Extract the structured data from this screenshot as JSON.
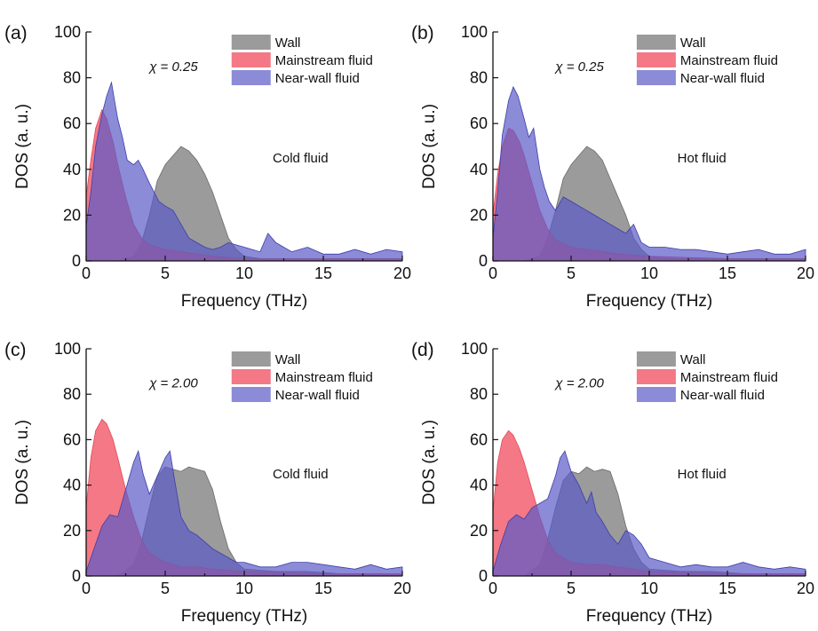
{
  "figure": {
    "colors": {
      "wall": "#7f7f7f",
      "mainstream": "#f25a6a",
      "near_wall": "#5a5ac8",
      "wall_edge": "#6a6a6a",
      "mainstream_edge": "#e04a5a",
      "near_wall_edge": "#3e3ea8"
    },
    "opacity": {
      "wall": 0.78,
      "mainstream": 0.82,
      "near_wall": 0.7
    }
  },
  "chart_data": [
    {
      "type": "area",
      "panel_label": "(a)",
      "xlabel": "Frequency (THz)",
      "ylabel": "DOS (a. u.)",
      "xlim": [
        0,
        20
      ],
      "ylim": [
        0,
        100
      ],
      "xticks": [
        0,
        5,
        10,
        15,
        20
      ],
      "yticks": [
        0,
        20,
        40,
        60,
        80,
        100
      ],
      "chi_label": "χ = 0.25",
      "annotation": "Cold fluid",
      "legend": [
        "Wall",
        "Mainstream fluid",
        "Near-wall fluid"
      ],
      "legend_position": "top-right",
      "series": [
        {
          "name": "Wall",
          "color_key": "wall",
          "x": [
            0,
            2,
            3,
            3.5,
            4,
            4.5,
            5,
            5.5,
            6,
            6.5,
            7,
            7.5,
            8,
            8.5,
            9,
            9.5,
            10,
            11,
            12,
            14,
            16,
            18,
            20
          ],
          "y": [
            0,
            0,
            2,
            8,
            20,
            35,
            42,
            46,
            50,
            48,
            44,
            38,
            30,
            20,
            10,
            5,
            2,
            1,
            1,
            1,
            1,
            1,
            1
          ]
        },
        {
          "name": "Mainstream fluid",
          "color_key": "mainstream",
          "x": [
            0,
            0.3,
            0.6,
            1,
            1.3,
            1.7,
            2,
            2.5,
            3,
            3.5,
            4,
            5,
            6,
            7,
            8,
            10,
            15,
            20
          ],
          "y": [
            28,
            44,
            58,
            66,
            62,
            52,
            42,
            28,
            16,
            10,
            7,
            5,
            4,
            3,
            2,
            1,
            1,
            1
          ]
        },
        {
          "name": "Near-wall fluid",
          "color_key": "near_wall",
          "x": [
            0,
            0.3,
            0.6,
            1,
            1.3,
            1.6,
            1.8,
            2,
            2.3,
            2.6,
            3,
            3.3,
            3.6,
            4,
            4.3,
            4.6,
            5,
            5.5,
            6,
            6.5,
            7,
            7.5,
            8,
            8.5,
            9,
            10,
            11,
            11.5,
            12,
            13,
            14,
            15,
            16,
            17,
            18,
            19,
            20
          ],
          "y": [
            15,
            30,
            50,
            64,
            72,
            78,
            70,
            62,
            54,
            44,
            42,
            44,
            40,
            34,
            30,
            26,
            24,
            22,
            16,
            10,
            8,
            6,
            5,
            6,
            8,
            6,
            4,
            12,
            8,
            4,
            6,
            3,
            3,
            5,
            3,
            5,
            4
          ]
        }
      ]
    },
    {
      "type": "area",
      "panel_label": "(b)",
      "xlabel": "Frequency (THz)",
      "ylabel": "DOS (a. u.)",
      "xlim": [
        0,
        20
      ],
      "ylim": [
        0,
        100
      ],
      "xticks": [
        0,
        5,
        10,
        15,
        20
      ],
      "yticks": [
        0,
        20,
        40,
        60,
        80,
        100
      ],
      "chi_label": "χ = 0.25",
      "annotation": "Hot fluid",
      "legend": [
        "Wall",
        "Mainstream fluid",
        "Near-wall fluid"
      ],
      "legend_position": "top-right",
      "series": [
        {
          "name": "Wall",
          "color_key": "wall",
          "x": [
            0,
            2,
            3,
            3.5,
            4,
            4.5,
            5,
            5.5,
            6,
            6.5,
            7,
            7.5,
            8,
            8.5,
            9,
            9.5,
            10,
            11,
            12,
            14,
            16,
            18,
            20
          ],
          "y": [
            0,
            0,
            2,
            10,
            22,
            36,
            42,
            46,
            50,
            48,
            44,
            36,
            28,
            20,
            10,
            5,
            2,
            1,
            1,
            1,
            1,
            1,
            1
          ]
        },
        {
          "name": "Mainstream fluid",
          "color_key": "mainstream",
          "x": [
            0,
            0.3,
            0.6,
            1,
            1.3,
            1.7,
            2,
            2.5,
            3,
            3.5,
            4,
            5,
            6,
            7,
            8,
            10,
            15,
            20
          ],
          "y": [
            20,
            38,
            50,
            58,
            57,
            52,
            46,
            34,
            22,
            14,
            9,
            6,
            5,
            4,
            3,
            2,
            1,
            1
          ]
        },
        {
          "name": "Near-wall fluid",
          "color_key": "near_wall",
          "x": [
            0,
            0.3,
            0.6,
            1,
            1.3,
            1.6,
            2,
            2.3,
            2.6,
            3,
            3.3,
            3.6,
            4,
            4.5,
            5,
            5.5,
            6,
            6.5,
            7,
            7.5,
            8,
            8.5,
            9,
            9.5,
            10,
            11,
            12,
            13,
            14,
            15,
            16,
            17,
            18,
            19,
            20
          ],
          "y": [
            10,
            30,
            55,
            70,
            76,
            72,
            62,
            54,
            58,
            40,
            32,
            26,
            22,
            28,
            26,
            24,
            22,
            20,
            18,
            16,
            14,
            12,
            16,
            8,
            6,
            6,
            5,
            5,
            4,
            3,
            4,
            5,
            3,
            3,
            5
          ]
        }
      ]
    },
    {
      "type": "area",
      "panel_label": "(c)",
      "xlabel": "Frequency (THz)",
      "ylabel": "DOS (a. u.)",
      "xlim": [
        0,
        20
      ],
      "ylim": [
        0,
        100
      ],
      "xticks": [
        0,
        5,
        10,
        15,
        20
      ],
      "yticks": [
        0,
        20,
        40,
        60,
        80,
        100
      ],
      "chi_label": "χ = 2.00",
      "annotation": "Cold fluid",
      "legend": [
        "Wall",
        "Mainstream fluid",
        "Near-wall fluid"
      ],
      "legend_position": "top-right",
      "series": [
        {
          "name": "Wall",
          "color_key": "wall",
          "x": [
            0,
            2,
            3,
            3.5,
            4,
            4.5,
            5,
            5.5,
            6,
            6.5,
            7,
            7.5,
            8,
            8.5,
            9,
            9.5,
            10,
            12,
            14,
            16,
            18,
            20
          ],
          "y": [
            0,
            0,
            5,
            15,
            30,
            44,
            48,
            47,
            46,
            48,
            47,
            46,
            38,
            24,
            12,
            6,
            3,
            2,
            2,
            1,
            1,
            1
          ]
        },
        {
          "name": "Mainstream fluid",
          "color_key": "mainstream",
          "x": [
            0,
            0.3,
            0.6,
            1,
            1.3,
            1.7,
            2,
            2.5,
            3,
            3.5,
            4,
            5,
            6,
            7,
            8,
            10,
            15,
            20
          ],
          "y": [
            30,
            52,
            64,
            69,
            67,
            60,
            52,
            38,
            26,
            16,
            10,
            6,
            4,
            4,
            3,
            2,
            1,
            1
          ]
        },
        {
          "name": "Near-wall fluid",
          "color_key": "near_wall",
          "x": [
            0,
            0.5,
            1,
            1.5,
            2,
            2.5,
            3,
            3.3,
            3.6,
            4,
            4.5,
            5,
            5.3,
            5.6,
            6,
            6.5,
            7,
            7.5,
            8,
            8.5,
            9,
            9.5,
            10,
            11,
            12,
            13,
            14,
            15,
            16,
            17,
            18,
            19,
            20
          ],
          "y": [
            2,
            12,
            22,
            27,
            26,
            38,
            50,
            55,
            45,
            36,
            44,
            52,
            55,
            42,
            26,
            20,
            18,
            15,
            12,
            10,
            8,
            6,
            6,
            4,
            4,
            6,
            6,
            5,
            4,
            3,
            5,
            3,
            4
          ]
        }
      ]
    },
    {
      "type": "area",
      "panel_label": "(d)",
      "xlabel": "Frequency (THz)",
      "ylabel": "DOS (a. u.)",
      "xlim": [
        0,
        20
      ],
      "ylim": [
        0,
        100
      ],
      "xticks": [
        0,
        5,
        10,
        15,
        20
      ],
      "yticks": [
        0,
        20,
        40,
        60,
        80,
        100
      ],
      "chi_label": "χ = 2.00",
      "annotation": "Hot fluid",
      "legend": [
        "Wall",
        "Mainstream fluid",
        "Near-wall fluid"
      ],
      "legend_position": "top-right",
      "series": [
        {
          "name": "Wall",
          "color_key": "wall",
          "x": [
            0,
            2,
            3,
            3.5,
            4,
            4.5,
            5,
            5.5,
            6,
            6.5,
            7,
            7.5,
            8,
            8.5,
            9,
            9.5,
            10,
            12,
            14,
            16,
            18,
            20
          ],
          "y": [
            0,
            0,
            5,
            16,
            30,
            42,
            46,
            45,
            48,
            46,
            47,
            46,
            36,
            22,
            12,
            6,
            3,
            2,
            2,
            1,
            1,
            1
          ]
        },
        {
          "name": "Mainstream fluid",
          "color_key": "mainstream",
          "x": [
            0,
            0.3,
            0.6,
            1,
            1.3,
            1.7,
            2,
            2.5,
            3,
            3.5,
            4,
            5,
            6,
            7,
            8,
            10,
            15,
            20
          ],
          "y": [
            28,
            50,
            60,
            64,
            62,
            56,
            50,
            38,
            26,
            16,
            10,
            6,
            5,
            5,
            4,
            2,
            1,
            1
          ]
        },
        {
          "name": "Near-wall fluid",
          "color_key": "near_wall",
          "x": [
            0,
            0.5,
            1,
            1.5,
            2,
            2.5,
            3,
            3.5,
            4,
            4.3,
            4.6,
            5,
            5.5,
            6,
            6.3,
            6.6,
            7,
            7.5,
            8,
            8.5,
            9,
            9.5,
            10,
            11,
            12,
            13,
            14,
            15,
            16,
            17,
            18,
            19,
            20
          ],
          "y": [
            2,
            14,
            24,
            27,
            25,
            30,
            32,
            34,
            44,
            52,
            55,
            46,
            40,
            32,
            37,
            28,
            24,
            18,
            14,
            20,
            18,
            14,
            8,
            6,
            4,
            5,
            4,
            4,
            6,
            4,
            3,
            4,
            3
          ]
        }
      ]
    }
  ]
}
